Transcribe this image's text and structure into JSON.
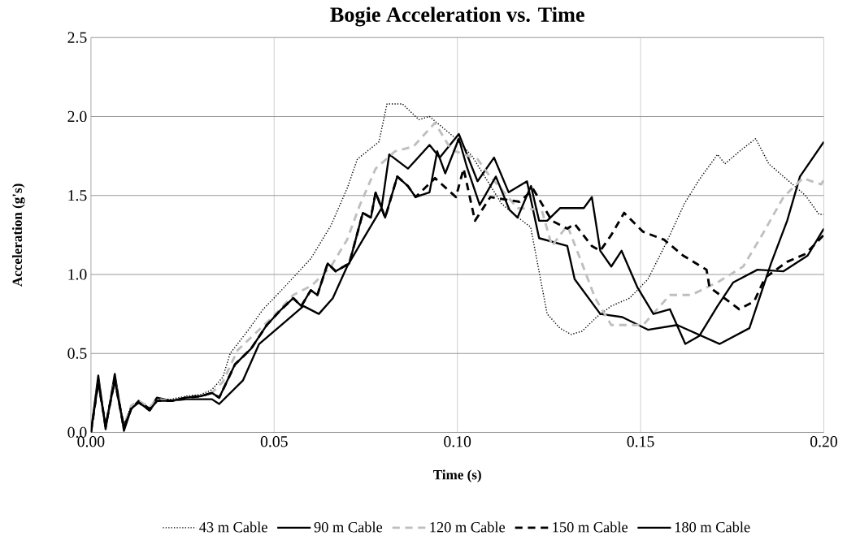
{
  "chart_data": {
    "type": "line",
    "title": "Bogie Acceleration vs. Time",
    "xlabel": "Time (s)",
    "ylabel": "Acceleration (g's)",
    "xlim": [
      0,
      0.2
    ],
    "ylim": [
      0,
      2.5
    ],
    "xticks": [
      {
        "value": 0,
        "label": "0.00"
      },
      {
        "value": 0.05,
        "label": "0.05"
      },
      {
        "value": 0.1,
        "label": "0.10"
      },
      {
        "value": 0.15,
        "label": "0.15"
      },
      {
        "value": 0.2,
        "label": "0.20"
      }
    ],
    "yticks": [
      {
        "value": 0,
        "label": "0.0"
      },
      {
        "value": 0.5,
        "label": "0.5"
      },
      {
        "value": 1,
        "label": "1.0"
      },
      {
        "value": 1.5,
        "label": "1.5"
      },
      {
        "value": 2,
        "label": "2.0"
      },
      {
        "value": 2.5,
        "label": "2.5"
      }
    ],
    "grid": true,
    "legend": "bottom",
    "marker": "none",
    "series": [
      {
        "name": "43 m Cable",
        "color": "#000000",
        "line_style": "dotted",
        "x": [
          0,
          0.002,
          0.004,
          0.0065,
          0.009,
          0.011,
          0.013,
          0.016,
          0.018,
          0.022,
          0.026,
          0.03,
          0.033,
          0.036,
          0.038,
          0.043,
          0.047,
          0.052,
          0.0552,
          0.06,
          0.0655,
          0.07,
          0.0727,
          0.0786,
          0.0808,
          0.085,
          0.0895,
          0.0924,
          0.0996,
          0.104,
          0.108,
          0.112,
          0.116,
          0.12,
          0.1245,
          0.128,
          0.131,
          0.134,
          0.138,
          0.142,
          0.147,
          0.152,
          0.157,
          0.162,
          0.166,
          0.171,
          0.173,
          0.177,
          0.1814,
          0.185,
          0.191,
          0.195,
          0.1987,
          0.2
        ],
        "values": [
          0,
          0.34,
          0.05,
          0.35,
          0.05,
          0.17,
          0.19,
          0.15,
          0.21,
          0.21,
          0.23,
          0.24,
          0.27,
          0.35,
          0.5,
          0.65,
          0.78,
          0.9,
          0.98,
          1.1,
          1.31,
          1.55,
          1.73,
          1.84,
          2.08,
          2.08,
          1.98,
          2.0,
          1.86,
          1.75,
          1.6,
          1.45,
          1.37,
          1.3,
          0.75,
          0.66,
          0.62,
          0.64,
          0.73,
          0.8,
          0.85,
          0.97,
          1.2,
          1.45,
          1.6,
          1.76,
          1.7,
          1.78,
          1.86,
          1.7,
          1.58,
          1.5,
          1.38,
          1.38
        ]
      },
      {
        "name": "90 m Cable",
        "color": "#000000",
        "line_style": "solid",
        "x": [
          0,
          0.002,
          0.004,
          0.0065,
          0.009,
          0.011,
          0.013,
          0.016,
          0.018,
          0.022,
          0.026,
          0.03,
          0.033,
          0.035,
          0.0415,
          0.0459,
          0.052,
          0.058,
          0.0622,
          0.066,
          0.0699,
          0.0742,
          0.0793,
          0.0814,
          0.0865,
          0.0924,
          0.0952,
          0.1004,
          0.1055,
          0.11,
          0.114,
          0.119,
          0.1223,
          0.13,
          0.132,
          0.139,
          0.145,
          0.152,
          0.16,
          0.1716,
          0.1797,
          0.1856,
          0.19,
          0.1935,
          0.2
        ],
        "values": [
          0,
          0.36,
          0.02,
          0.37,
          0.01,
          0.15,
          0.2,
          0.15,
          0.22,
          0.2,
          0.21,
          0.21,
          0.21,
          0.18,
          0.33,
          0.56,
          0.68,
          0.8,
          0.75,
          0.85,
          1.05,
          1.22,
          1.42,
          1.76,
          1.67,
          1.82,
          1.74,
          1.89,
          1.59,
          1.74,
          1.52,
          1.59,
          1.23,
          1.18,
          0.97,
          0.75,
          0.73,
          0.65,
          0.68,
          0.56,
          0.66,
          1.07,
          1.34,
          1.62,
          1.84
        ]
      },
      {
        "name": "120 m Cable",
        "color": "#bfbfbf",
        "line_style": "dashed",
        "x": [
          0,
          0.002,
          0.004,
          0.0065,
          0.009,
          0.011,
          0.013,
          0.016,
          0.018,
          0.022,
          0.026,
          0.03,
          0.033,
          0.036,
          0.04,
          0.045,
          0.05,
          0.0552,
          0.0603,
          0.0655,
          0.0699,
          0.0734,
          0.0777,
          0.083,
          0.088,
          0.0939,
          0.0983,
          0.1055,
          0.1083,
          0.1164,
          0.123,
          0.1258,
          0.13,
          0.134,
          0.1376,
          0.142,
          0.1507,
          0.158,
          0.1638,
          0.171,
          0.178,
          0.1834,
          0.189,
          0.1943,
          0.1993,
          0.2
        ],
        "values": [
          0,
          0.32,
          0.05,
          0.33,
          0.04,
          0.17,
          0.2,
          0.16,
          0.21,
          0.2,
          0.22,
          0.23,
          0.25,
          0.32,
          0.52,
          0.63,
          0.74,
          0.87,
          0.93,
          1.05,
          1.22,
          1.44,
          1.67,
          1.78,
          1.81,
          1.96,
          1.79,
          1.73,
          1.64,
          1.42,
          1.41,
          1.18,
          1.31,
          1.07,
          0.85,
          0.68,
          0.68,
          0.87,
          0.87,
          0.95,
          1.05,
          1.26,
          1.49,
          1.61,
          1.57,
          1.6
        ]
      },
      {
        "name": "150 m Cable",
        "color": "#000000",
        "line_style": "dashed",
        "x": [
          0,
          0.002,
          0.004,
          0.0065,
          0.009,
          0.011,
          0.013,
          0.016,
          0.018,
          0.022,
          0.026,
          0.03,
          0.033,
          0.035,
          0.0393,
          0.0437,
          0.048,
          0.052,
          0.0552,
          0.0574,
          0.06,
          0.0618,
          0.0646,
          0.0668,
          0.0705,
          0.0742,
          0.0764,
          0.0777,
          0.0803,
          0.0836,
          0.0865,
          0.0886,
          0.0939,
          0.0996,
          0.1017,
          0.1048,
          0.109,
          0.117,
          0.1207,
          0.1258,
          0.13,
          0.132,
          0.1367,
          0.139,
          0.142,
          0.1455,
          0.1507,
          0.1564,
          0.1616,
          0.168,
          0.1688,
          0.1769,
          0.181,
          0.184,
          0.19,
          0.195,
          0.2
        ],
        "values": [
          0,
          0.32,
          0.04,
          0.33,
          0.03,
          0.15,
          0.19,
          0.14,
          0.2,
          0.2,
          0.22,
          0.23,
          0.25,
          0.22,
          0.43,
          0.53,
          0.68,
          0.78,
          0.85,
          0.8,
          0.9,
          0.87,
          1.07,
          1.02,
          1.07,
          1.39,
          1.36,
          1.52,
          1.36,
          1.62,
          1.56,
          1.49,
          1.61,
          1.49,
          1.67,
          1.34,
          1.49,
          1.46,
          1.54,
          1.34,
          1.29,
          1.32,
          1.18,
          1.15,
          1.25,
          1.39,
          1.27,
          1.22,
          1.12,
          1.03,
          0.92,
          0.78,
          0.83,
          0.98,
          1.08,
          1.13,
          1.25
        ]
      },
      {
        "name": "180 m Cable",
        "color": "#000000",
        "line_style": "solid",
        "x": [
          0,
          0.002,
          0.004,
          0.0065,
          0.009,
          0.011,
          0.013,
          0.016,
          0.018,
          0.022,
          0.026,
          0.03,
          0.033,
          0.035,
          0.0393,
          0.0437,
          0.048,
          0.052,
          0.0552,
          0.0574,
          0.06,
          0.0618,
          0.0646,
          0.0668,
          0.0705,
          0.0742,
          0.0764,
          0.0777,
          0.0803,
          0.0836,
          0.0865,
          0.0886,
          0.0924,
          0.0945,
          0.0967,
          0.1004,
          0.1026,
          0.1061,
          0.1105,
          0.1142,
          0.1164,
          0.1201,
          0.1223,
          0.1245,
          0.128,
          0.1345,
          0.1367,
          0.139,
          0.142,
          0.1448,
          0.1491,
          0.1535,
          0.158,
          0.1622,
          0.166,
          0.171,
          0.1753,
          0.1819,
          0.189,
          0.1956,
          0.2
        ],
        "values": [
          0,
          0.32,
          0.04,
          0.33,
          0.03,
          0.15,
          0.19,
          0.14,
          0.2,
          0.2,
          0.22,
          0.23,
          0.25,
          0.22,
          0.43,
          0.53,
          0.68,
          0.78,
          0.85,
          0.8,
          0.9,
          0.87,
          1.07,
          1.02,
          1.07,
          1.39,
          1.36,
          1.52,
          1.36,
          1.62,
          1.56,
          1.49,
          1.52,
          1.78,
          1.64,
          1.86,
          1.68,
          1.44,
          1.62,
          1.41,
          1.36,
          1.56,
          1.34,
          1.34,
          1.42,
          1.42,
          1.49,
          1.15,
          1.05,
          1.15,
          0.92,
          0.75,
          0.78,
          0.56,
          0.61,
          0.8,
          0.95,
          1.03,
          1.02,
          1.12,
          1.29
        ]
      }
    ]
  }
}
